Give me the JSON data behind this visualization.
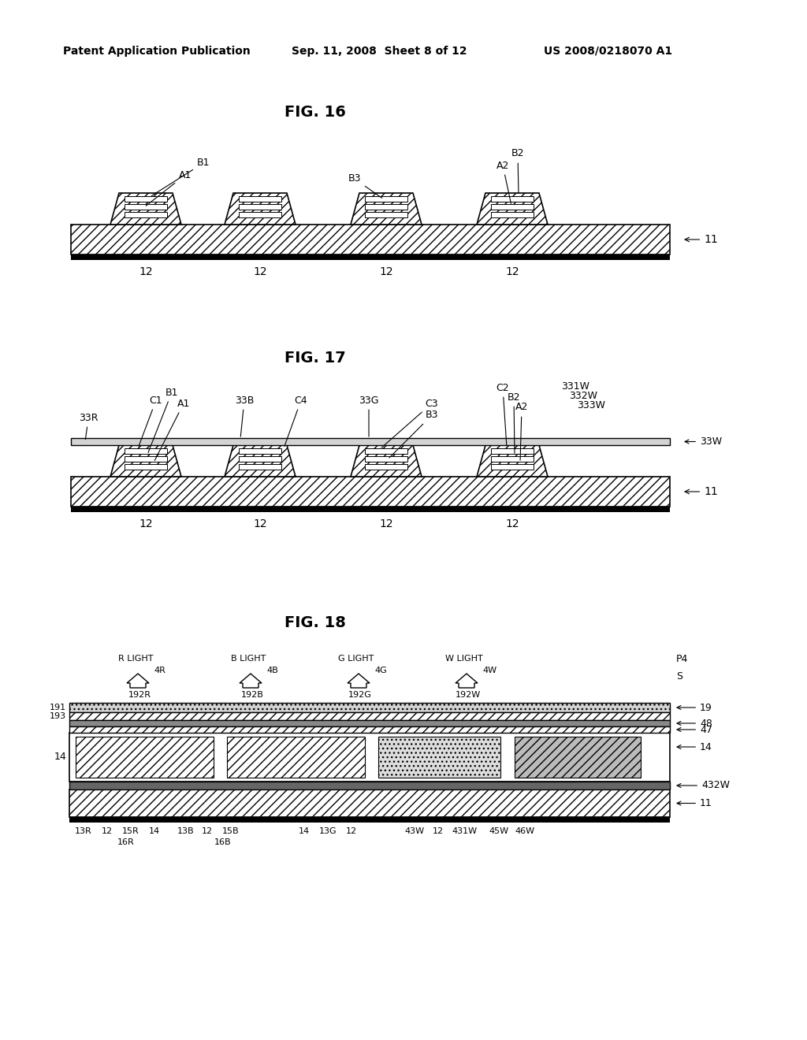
{
  "bg": "#ffffff",
  "header_left": "Patent Application Publication",
  "header_mid": "Sep. 11, 2008  Sheet 8 of 12",
  "header_right": "US 2008/0218070 A1",
  "fig16_title": "FIG. 16",
  "fig17_title": "FIG. 17",
  "fig18_title": "FIG. 18"
}
